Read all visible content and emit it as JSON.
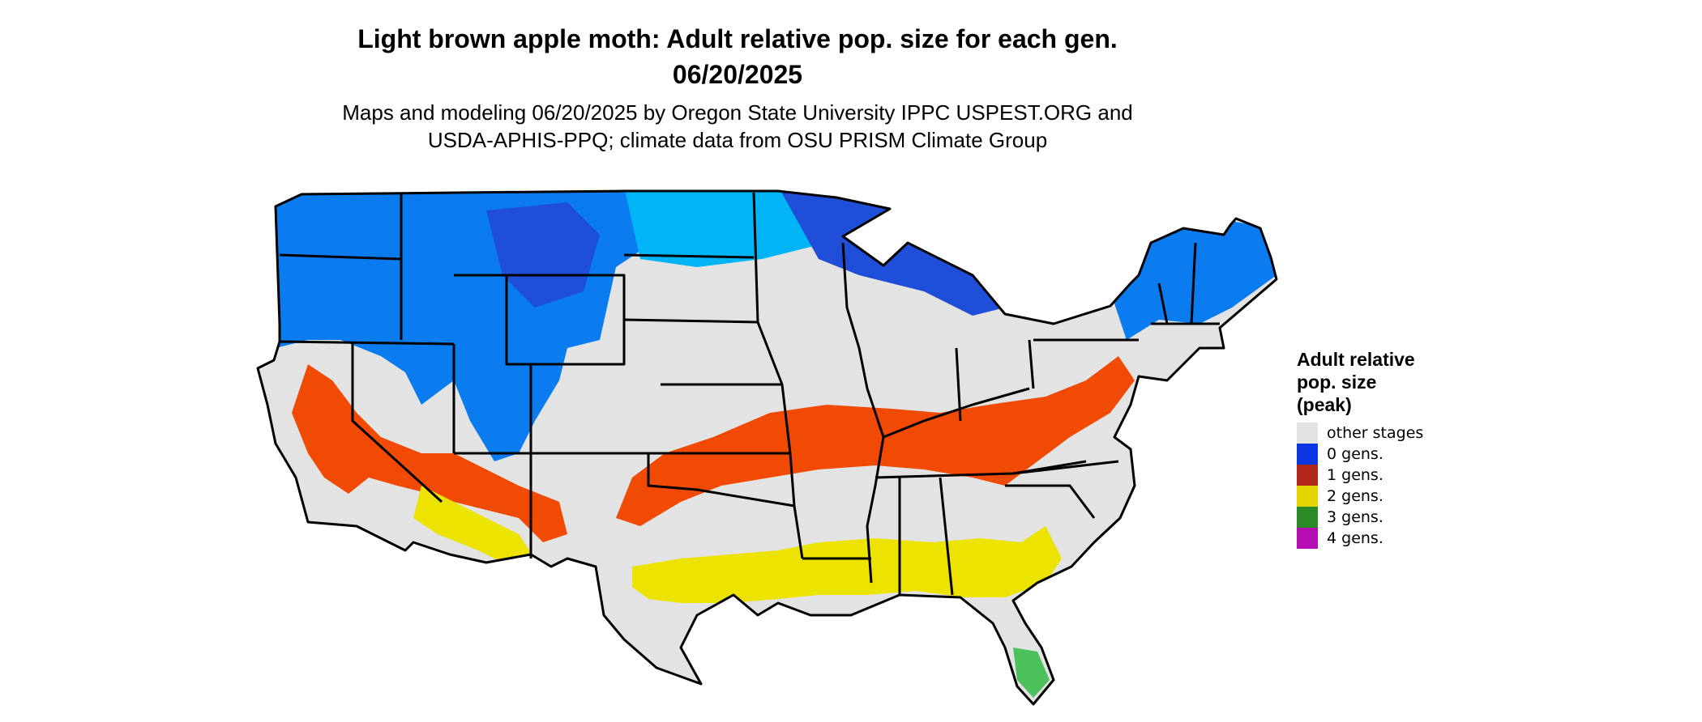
{
  "map": {
    "title_line1": "Light brown apple moth: Adult relative pop. size for each gen.",
    "title_line2": "06/20/2025",
    "subtitle_line1": "Maps and modeling 06/20/2025 by Oregon State University IPPC USPEST.ORG and",
    "subtitle_line2": "USDA-APHIS-PPQ; climate data from OSU PRISM Climate Group",
    "region": "Contiguous United States"
  },
  "legend": {
    "title_line1": "Adult relative",
    "title_line2": "pop. size",
    "title_line3": "(peak)",
    "items": [
      {
        "label": "other stages",
        "color": "#e3e3e3"
      },
      {
        "label": "0 gens.",
        "color": "#0a35e0"
      },
      {
        "label": "1 gens.",
        "color": "#b0271a"
      },
      {
        "label": "2 gens.",
        "color": "#e4d500"
      },
      {
        "label": "3 gens.",
        "color": "#2a8a25"
      },
      {
        "label": "4 gens.",
        "color": "#b40db4"
      }
    ]
  },
  "map_colors": {
    "background_land": "#e3e3e3",
    "cool_blue_dark": "#1f4fd8",
    "cool_blue_mid": "#0a7cf0",
    "cool_blue_light": "#00b4f5",
    "one_gen_fill": "#f04a05",
    "two_gen_fill": "#ece300",
    "three_gen_fill": "#4cc05a",
    "state_border": "#000000"
  }
}
